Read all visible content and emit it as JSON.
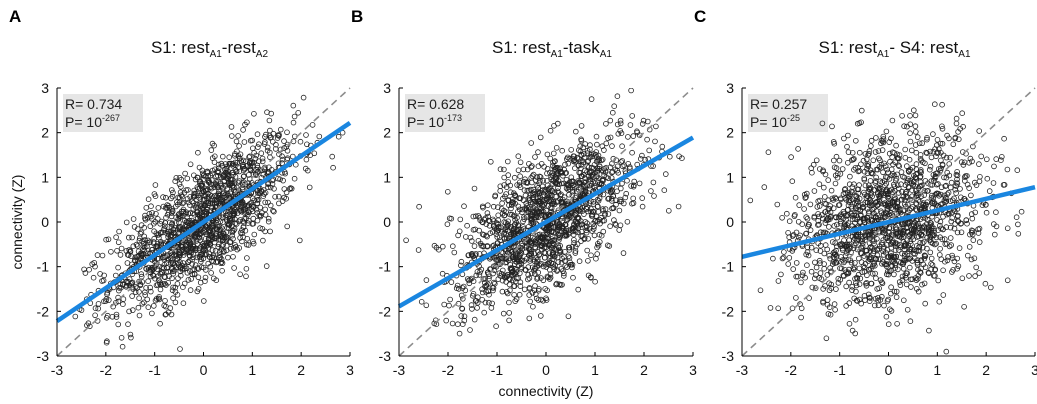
{
  "figure": {
    "ylabel": "connectivity (Z)",
    "xlabel": "connectivity (Z)"
  },
  "colors": {
    "fit_line": "#1a86e0",
    "identity_line": "#8c8c8c",
    "points": "#222222",
    "stats_box": "#e6e6e6"
  },
  "chart_data": [
    {
      "type": "scatter",
      "panel_letter": "A",
      "title": [
        {
          "text": "S1: rest",
          "sub": false
        },
        {
          "text": "A1",
          "sub": true
        },
        {
          "text": "-rest",
          "sub": false
        },
        {
          "text": "A2",
          "sub": true
        }
      ],
      "xlim": [
        -3,
        3
      ],
      "ylim": [
        -3,
        3
      ],
      "xticks": [
        "-3",
        "-2",
        "-1",
        "0",
        "1",
        "2",
        "3"
      ],
      "yticks": [
        "-3",
        "-2",
        "-1",
        "0",
        "1",
        "2",
        "3"
      ],
      "xlabel": "",
      "ylabel": "connectivity (Z)",
      "stats": {
        "r_label": "R= 0.734",
        "p_label": "P= 10",
        "p_exp": "-267"
      },
      "r": 0.734,
      "fit_line": {
        "slope": 0.74,
        "intercept": 0.0
      },
      "identity_line": true,
      "n_points": 1500
    },
    {
      "type": "scatter",
      "panel_letter": "B",
      "title": [
        {
          "text": "S1: rest",
          "sub": false
        },
        {
          "text": "A1",
          "sub": true
        },
        {
          "text": "-task",
          "sub": false
        },
        {
          "text": "A1",
          "sub": true
        }
      ],
      "xlim": [
        -3,
        3
      ],
      "ylim": [
        -3,
        3
      ],
      "xticks": [
        "-3",
        "-2",
        "-1",
        "0",
        "1",
        "2",
        "3"
      ],
      "yticks": [
        "-3",
        "-2",
        "-1",
        "0",
        "1",
        "2",
        "3"
      ],
      "xlabel": "connectivity (Z)",
      "ylabel": "",
      "stats": {
        "r_label": "R= 0.628",
        "p_label": "P= 10",
        "p_exp": "-173"
      },
      "r": 0.628,
      "fit_line": {
        "slope": 0.63,
        "intercept": 0.0
      },
      "identity_line": true,
      "n_points": 1500
    },
    {
      "type": "scatter",
      "panel_letter": "C",
      "title": [
        {
          "text": "S1: rest",
          "sub": false
        },
        {
          "text": "A1",
          "sub": true
        },
        {
          "text": "- S4: rest",
          "sub": false
        },
        {
          "text": "A1",
          "sub": true
        }
      ],
      "xlim": [
        -3,
        3
      ],
      "ylim": [
        -3,
        3
      ],
      "xticks": [
        "-3",
        "-2",
        "-1",
        "0",
        "1",
        "2",
        "3"
      ],
      "yticks": [
        "-3",
        "-2",
        "-1",
        "0",
        "1",
        "2",
        "3"
      ],
      "xlabel": "",
      "ylabel": "",
      "stats": {
        "r_label": "R= 0.257",
        "p_label": "P= 10",
        "p_exp": "-25"
      },
      "r": 0.257,
      "fit_line": {
        "slope": 0.26,
        "intercept": 0.0
      },
      "identity_line": true,
      "n_points": 1500
    }
  ]
}
